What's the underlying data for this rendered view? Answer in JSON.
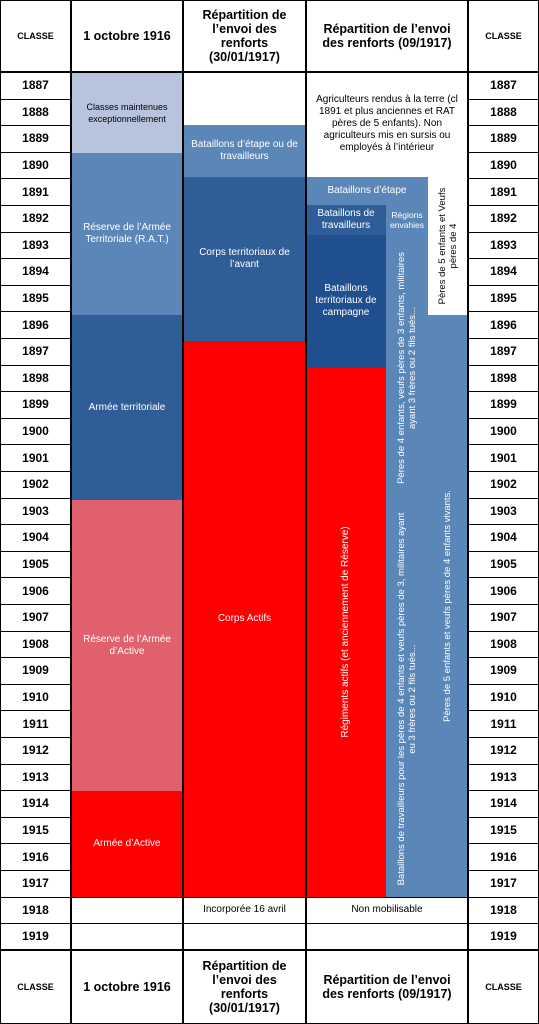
{
  "headers": {
    "classe": "CLASSE",
    "oct1916": "1 octobre 1916",
    "jan1917": "Répartition de l’envoi des renforts (30/01/1917)",
    "sep1917": "Répartition de l’envoi des renforts (09/1917)"
  },
  "years": [
    "1887",
    "1888",
    "1889",
    "1890",
    "1891",
    "1892",
    "1893",
    "1894",
    "1895",
    "1896",
    "1897",
    "1898",
    "1899",
    "1900",
    "1901",
    "1902",
    "1903",
    "1904",
    "1905",
    "1906",
    "1907",
    "1908",
    "1909",
    "1910",
    "1911",
    "1912",
    "1913",
    "1914",
    "1915",
    "1916",
    "1917",
    "1918",
    "1919"
  ],
  "col_oct1916": {
    "exceptional": "Classes maintenues exceptionnellement",
    "rat": "Réserve de l’Armée Territoriale (R.A.T.)",
    "territoriale": "Armée territoriale",
    "reserve_active": "Réserve de l’Armée d’Active",
    "active": "Armée d’Active"
  },
  "col_jan1917": {
    "etape_travailleurs": "Bataillons d’étape ou de travailleurs",
    "territoriaux_avant": "Corps territoriaux de l’avant",
    "actifs": "Corps Actifs",
    "incorporee": "Incorporée 16 avril"
  },
  "col_sep1917": {
    "agriculteurs": "Agriculteurs rendus à la terre (cl 1891 et plus anciennes et RAT pères de 5 enfants). Non agriculteurs mis en sursis ou employés à l’intérieur",
    "etape": "Bataillons d’étape",
    "travailleurs": "Bataillons de travailleurs",
    "regions": "Régions envahies",
    "campagne": "Bataillons territoriaux de campagne",
    "regiments_actifs": "Régiments actifs (et anciennement de Réserve)",
    "peres4_upper": "Pères de 4 enfants, veufs pères de 3 enfants, militaires ayant 3 frères ou 2 fils tués...",
    "peres5_upper": "Pères de 5 enfants et Veufs pères de 4",
    "travailleurs_lower": "Bataillons de travailleurs pour les pères de 4 enfants et veufs pères de 3, militaires ayant eu 3 frères ou 2 fils tués...",
    "peres5_lower": "Pères de 5 enfants et veufs pères de 4 enfants vivants.",
    "non_mobilisable": "Non mobilisable"
  },
  "colors": {
    "light_blue": "#b8c4dd",
    "mid_blue": "#5b87b8",
    "dark_blue": "#2f5d98",
    "bright_blue": "#1f4f8f",
    "pink": "#e0606e",
    "red": "#ff0000"
  }
}
